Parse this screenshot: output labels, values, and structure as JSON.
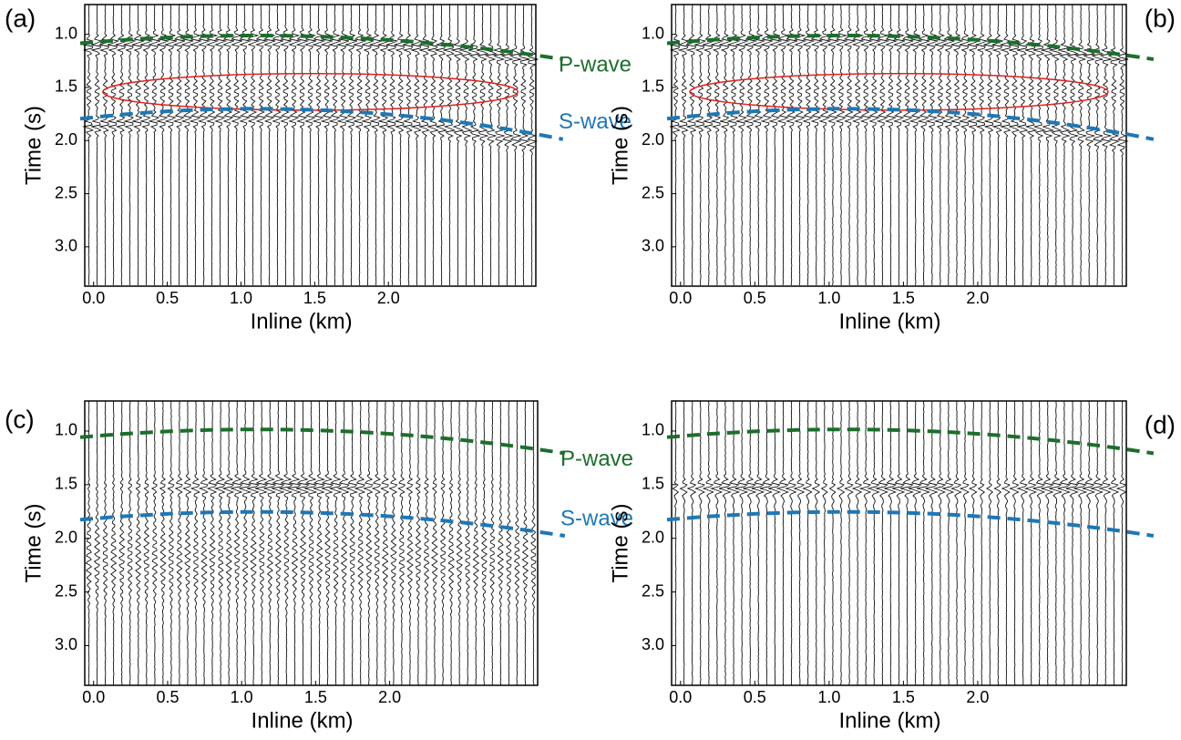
{
  "chart_data": [
    {
      "type": "seismic",
      "panel_label": "(a)",
      "xlabel": "Inline (km)",
      "ylabel": "Time (s)",
      "xlim": [
        -0.06,
        3.0
      ],
      "ylim": [
        0.72,
        3.37
      ],
      "y_inverted": true,
      "xticks": [
        {
          "value": 0,
          "label": "0.0"
        },
        0.5,
        {
          "value": 1,
          "label": "1.0"
        },
        1.5,
        {
          "value": 2,
          "label": "2.0"
        }
      ],
      "yticks": [
        {
          "value": 1,
          "label": "1.0"
        },
        1.5,
        {
          "value": 2,
          "label": "2.0"
        },
        2.5,
        {
          "value": 3,
          "label": "3.0"
        }
      ],
      "annotations": [
        {
          "text": "P-wave",
          "color": "#1c6e2c"
        },
        {
          "text": "S-wave",
          "color": "#1f77b4"
        }
      ]
    },
    {
      "type": "seismic",
      "panel_label": "(b)",
      "xlabel": "Inline (km)",
      "ylabel": "Time (s)",
      "xlim": [
        -0.06,
        3.0
      ],
      "ylim": [
        0.72,
        3.37
      ],
      "y_inverted": true,
      "xticks": [
        {
          "value": 0,
          "label": "0.0"
        },
        0.5,
        {
          "value": 1,
          "label": "1.0"
        },
        1.5,
        {
          "value": 2,
          "label": "2.0"
        }
      ],
      "yticks": [
        {
          "value": 1,
          "label": "1.0"
        },
        1.5,
        {
          "value": 2,
          "label": "2.0"
        },
        2.5,
        {
          "value": 3,
          "label": "3.0"
        }
      ]
    },
    {
      "type": "seismic",
      "panel_label": "(c)",
      "xlabel": "Inline (km)",
      "ylabel": "Time (s)",
      "xlim": [
        -0.06,
        3.0
      ],
      "ylim": [
        0.72,
        3.37
      ],
      "y_inverted": true,
      "xticks": [
        {
          "value": 0,
          "label": "0.0"
        },
        0.5,
        {
          "value": 1,
          "label": "1.0"
        },
        1.5,
        {
          "value": 2,
          "label": "2.0"
        }
      ],
      "yticks": [
        {
          "value": 1,
          "label": "1.0"
        },
        1.5,
        {
          "value": 2,
          "label": "2.0"
        },
        2.5,
        {
          "value": 3,
          "label": "3.0"
        }
      ],
      "annotations": [
        {
          "text": "P-wave",
          "color": "#1c6e2c"
        },
        {
          "text": "S-wave",
          "color": "#1f77b4"
        }
      ]
    },
    {
      "type": "seismic",
      "panel_label": "(d)",
      "xlabel": "Inline (km)",
      "ylabel": "Time (s)",
      "xlim": [
        -0.06,
        3.0
      ],
      "ylim": [
        0.72,
        3.37
      ],
      "y_inverted": true,
      "xticks": [
        {
          "value": 0,
          "label": "0.0"
        },
        0.5,
        {
          "value": 1,
          "label": "1.0"
        },
        1.5,
        {
          "value": 2,
          "label": "2.0"
        }
      ],
      "yticks": [
        {
          "value": 1,
          "label": "1.0"
        },
        1.5,
        {
          "value": 2,
          "label": "2.0"
        },
        2.5,
        {
          "value": 3,
          "label": "3.0"
        }
      ]
    }
  ]
}
